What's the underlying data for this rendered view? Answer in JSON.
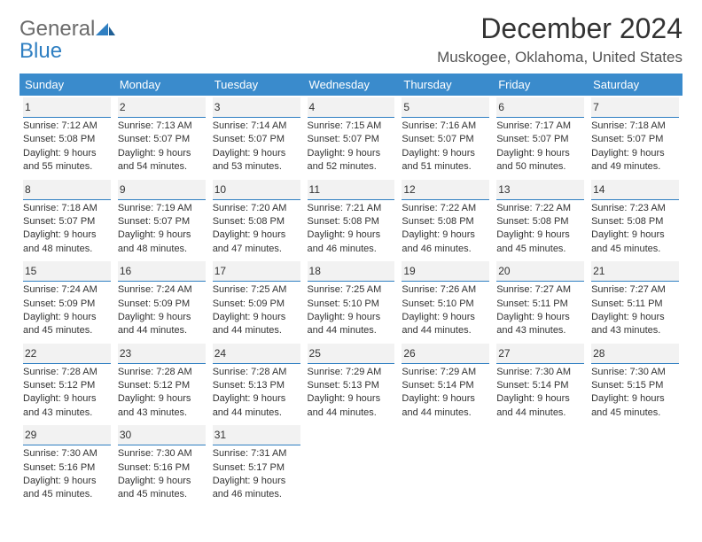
{
  "logo": {
    "word1": "General",
    "word2": "Blue"
  },
  "title": "December 2024",
  "location": "Muskogee, Oklahoma, United States",
  "colors": {
    "header_bg": "#3a8bcc",
    "header_fg": "#ffffff",
    "rule": "#2f7fc2",
    "daynum_bg": "#f2f2f2",
    "text": "#333333",
    "logo_gray": "#6b6b6b",
    "logo_blue": "#2f7fc2",
    "page_bg": "#ffffff"
  },
  "weekdays": [
    "Sunday",
    "Monday",
    "Tuesday",
    "Wednesday",
    "Thursday",
    "Friday",
    "Saturday"
  ],
  "weeks": [
    [
      {
        "n": "1",
        "sr": "7:12 AM",
        "ss": "5:08 PM",
        "dl": "9 hours and 55 minutes."
      },
      {
        "n": "2",
        "sr": "7:13 AM",
        "ss": "5:07 PM",
        "dl": "9 hours and 54 minutes."
      },
      {
        "n": "3",
        "sr": "7:14 AM",
        "ss": "5:07 PM",
        "dl": "9 hours and 53 minutes."
      },
      {
        "n": "4",
        "sr": "7:15 AM",
        "ss": "5:07 PM",
        "dl": "9 hours and 52 minutes."
      },
      {
        "n": "5",
        "sr": "7:16 AM",
        "ss": "5:07 PM",
        "dl": "9 hours and 51 minutes."
      },
      {
        "n": "6",
        "sr": "7:17 AM",
        "ss": "5:07 PM",
        "dl": "9 hours and 50 minutes."
      },
      {
        "n": "7",
        "sr": "7:18 AM",
        "ss": "5:07 PM",
        "dl": "9 hours and 49 minutes."
      }
    ],
    [
      {
        "n": "8",
        "sr": "7:18 AM",
        "ss": "5:07 PM",
        "dl": "9 hours and 48 minutes."
      },
      {
        "n": "9",
        "sr": "7:19 AM",
        "ss": "5:07 PM",
        "dl": "9 hours and 48 minutes."
      },
      {
        "n": "10",
        "sr": "7:20 AM",
        "ss": "5:08 PM",
        "dl": "9 hours and 47 minutes."
      },
      {
        "n": "11",
        "sr": "7:21 AM",
        "ss": "5:08 PM",
        "dl": "9 hours and 46 minutes."
      },
      {
        "n": "12",
        "sr": "7:22 AM",
        "ss": "5:08 PM",
        "dl": "9 hours and 46 minutes."
      },
      {
        "n": "13",
        "sr": "7:22 AM",
        "ss": "5:08 PM",
        "dl": "9 hours and 45 minutes."
      },
      {
        "n": "14",
        "sr": "7:23 AM",
        "ss": "5:08 PM",
        "dl": "9 hours and 45 minutes."
      }
    ],
    [
      {
        "n": "15",
        "sr": "7:24 AM",
        "ss": "5:09 PM",
        "dl": "9 hours and 45 minutes."
      },
      {
        "n": "16",
        "sr": "7:24 AM",
        "ss": "5:09 PM",
        "dl": "9 hours and 44 minutes."
      },
      {
        "n": "17",
        "sr": "7:25 AM",
        "ss": "5:09 PM",
        "dl": "9 hours and 44 minutes."
      },
      {
        "n": "18",
        "sr": "7:25 AM",
        "ss": "5:10 PM",
        "dl": "9 hours and 44 minutes."
      },
      {
        "n": "19",
        "sr": "7:26 AM",
        "ss": "5:10 PM",
        "dl": "9 hours and 44 minutes."
      },
      {
        "n": "20",
        "sr": "7:27 AM",
        "ss": "5:11 PM",
        "dl": "9 hours and 43 minutes."
      },
      {
        "n": "21",
        "sr": "7:27 AM",
        "ss": "5:11 PM",
        "dl": "9 hours and 43 minutes."
      }
    ],
    [
      {
        "n": "22",
        "sr": "7:28 AM",
        "ss": "5:12 PM",
        "dl": "9 hours and 43 minutes."
      },
      {
        "n": "23",
        "sr": "7:28 AM",
        "ss": "5:12 PM",
        "dl": "9 hours and 43 minutes."
      },
      {
        "n": "24",
        "sr": "7:28 AM",
        "ss": "5:13 PM",
        "dl": "9 hours and 44 minutes."
      },
      {
        "n": "25",
        "sr": "7:29 AM",
        "ss": "5:13 PM",
        "dl": "9 hours and 44 minutes."
      },
      {
        "n": "26",
        "sr": "7:29 AM",
        "ss": "5:14 PM",
        "dl": "9 hours and 44 minutes."
      },
      {
        "n": "27",
        "sr": "7:30 AM",
        "ss": "5:14 PM",
        "dl": "9 hours and 44 minutes."
      },
      {
        "n": "28",
        "sr": "7:30 AM",
        "ss": "5:15 PM",
        "dl": "9 hours and 45 minutes."
      }
    ],
    [
      {
        "n": "29",
        "sr": "7:30 AM",
        "ss": "5:16 PM",
        "dl": "9 hours and 45 minutes."
      },
      {
        "n": "30",
        "sr": "7:30 AM",
        "ss": "5:16 PM",
        "dl": "9 hours and 45 minutes."
      },
      {
        "n": "31",
        "sr": "7:31 AM",
        "ss": "5:17 PM",
        "dl": "9 hours and 46 minutes."
      },
      null,
      null,
      null,
      null
    ]
  ],
  "labels": {
    "sunrise": "Sunrise:",
    "sunset": "Sunset:",
    "daylight": "Daylight:"
  }
}
